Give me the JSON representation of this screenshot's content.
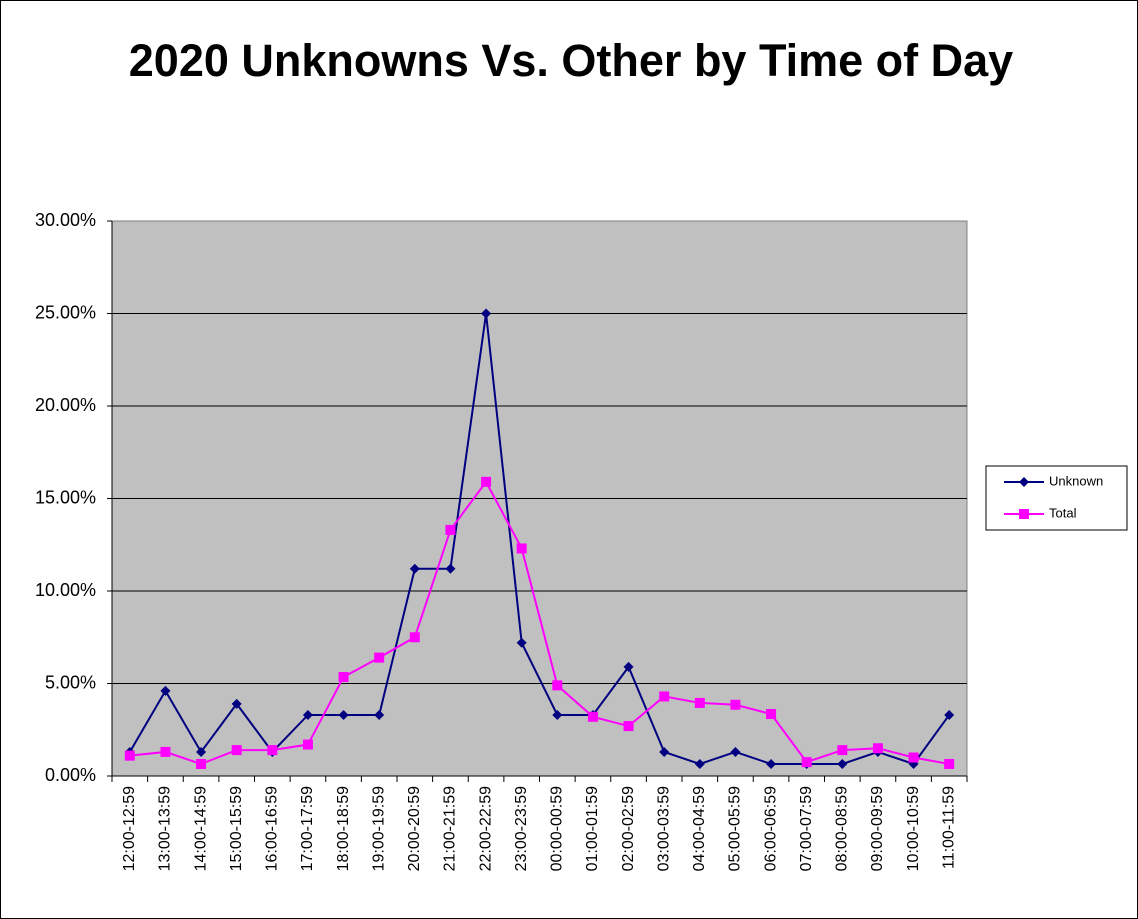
{
  "chart_data": {
    "type": "line",
    "title": "2020 Unknowns Vs. Other by Time of Day",
    "categories": [
      "12:00-12:59",
      "13:00-13:59",
      "14:00-14:59",
      "15:00-15:59",
      "16:00-16:59",
      "17:00-17:59",
      "18:00-18:59",
      "19:00-19:59",
      "20:00-20:59",
      "21:00-21:59",
      "22:00-22:59",
      "23:00-23:59",
      "00:00-00:59",
      "01:00-01:59",
      "02:00-02:59",
      "03:00-03:59",
      "04:00-04:59",
      "05:00-05:59",
      "06:00-06:59",
      "07:00-07:59",
      "08:00-08:59",
      "09:00-09:59",
      "10:00-10:59",
      "11:00-11:59"
    ],
    "series": [
      {
        "name": "Unknown",
        "color": "#000080",
        "marker": "diamond",
        "values": [
          1.3,
          4.6,
          1.3,
          3.9,
          1.3,
          3.3,
          3.3,
          3.3,
          11.2,
          11.2,
          25.0,
          7.2,
          3.3,
          3.3,
          5.9,
          1.3,
          0.65,
          1.3,
          0.65,
          0.65,
          0.65,
          1.3,
          0.65,
          3.3
        ]
      },
      {
        "name": "Total",
        "color": "#ff00ff",
        "marker": "square",
        "values": [
          1.1,
          1.3,
          0.65,
          1.4,
          1.4,
          1.7,
          5.35,
          6.4,
          7.5,
          13.3,
          15.9,
          12.3,
          4.9,
          3.2,
          2.7,
          4.3,
          3.95,
          3.85,
          3.35,
          0.75,
          1.4,
          1.5,
          1.0,
          0.65
        ]
      }
    ],
    "ylim": [
      0,
      30
    ],
    "yticks": [
      {
        "value": 0,
        "label": "0.00%"
      },
      {
        "value": 5,
        "label": "5.00%"
      },
      {
        "value": 10,
        "label": "10.00%"
      },
      {
        "value": 15,
        "label": "15.00%"
      },
      {
        "value": 20,
        "label": "20.00%"
      },
      {
        "value": 25,
        "label": "25.00%"
      },
      {
        "value": 30,
        "label": "30.00%"
      }
    ],
    "grid": true,
    "legend": "right"
  }
}
